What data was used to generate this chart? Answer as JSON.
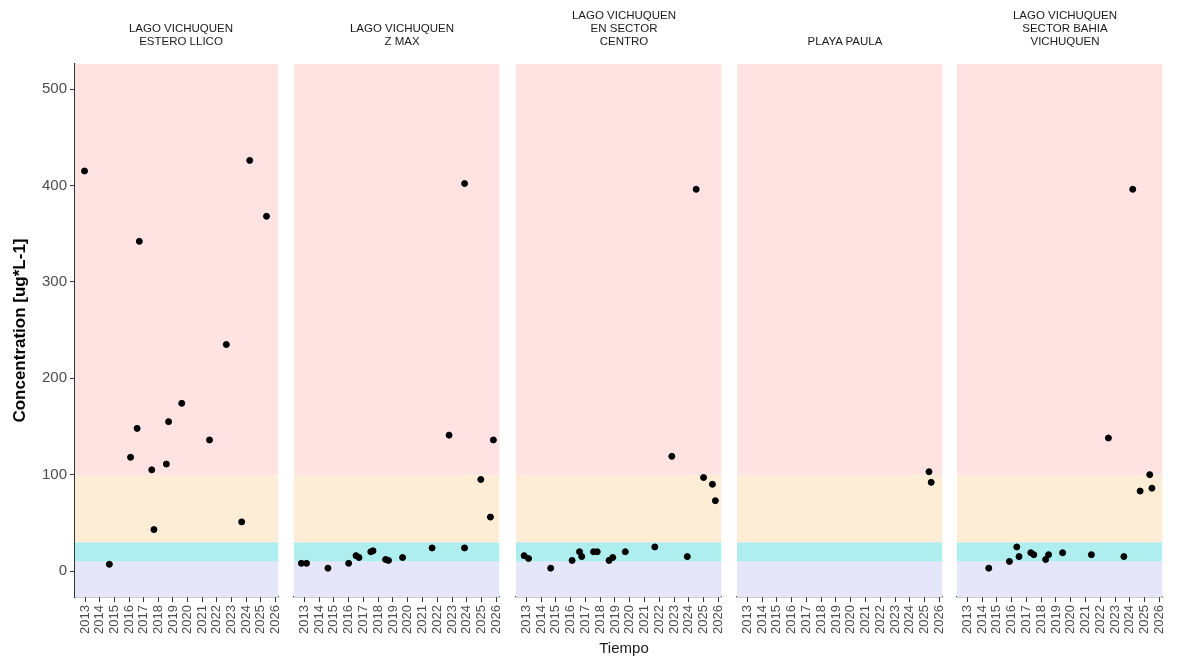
{
  "chart_data": [
    {
      "type": "scatter",
      "title": "LAGO VICHUQUEN\nESTERO LLICO",
      "ylabel": "Concentration [ug*L-1]",
      "color": "#000000",
      "marker": "circle",
      "x": [
        2012.95,
        2014.65,
        2016.1,
        2016.55,
        2016.7,
        2017.55,
        2017.7,
        2018.55,
        2018.7,
        2019.6,
        2021.5,
        2022.65,
        2023.7,
        2024.25,
        2025.4
      ],
      "values": [
        415,
        7,
        118,
        148,
        342,
        105,
        43,
        111,
        155,
        174,
        136,
        235,
        51,
        426,
        368
      ],
      "xlim": [
        2012.3,
        2026.2
      ],
      "xticks": [
        2013,
        2014,
        2015,
        2016,
        2017,
        2018,
        2019,
        2020,
        2021,
        2022,
        2023,
        2024,
        2025,
        2026
      ],
      "ylim": [
        -27,
        526
      ],
      "yticks": [
        0,
        100,
        200,
        300,
        400,
        500
      ],
      "bands": [
        {
          "axis": "y",
          "from": -27,
          "to": 10,
          "color": "#e6e6fa"
        },
        {
          "axis": "y",
          "from": 10,
          "to": 30,
          "color": "#aeeeee"
        },
        {
          "axis": "y",
          "from": 30,
          "to": 100,
          "color": "#fdecd6"
        },
        {
          "axis": "y",
          "from": 100,
          "to": 526,
          "color": "#ffe3e3"
        }
      ]
    },
    {
      "type": "scatter",
      "title": "LAGO VICHUQUEN\nZ MAX",
      "color": "#000000",
      "marker": "circle",
      "x": [
        2012.8,
        2013.15,
        2014.6,
        2016.0,
        2016.5,
        2016.7,
        2017.5,
        2017.65,
        2018.5,
        2018.7,
        2019.65,
        2021.65,
        2022.8,
        2023.85,
        2023.85,
        2024.95,
        2025.6,
        2025.8
      ],
      "values": [
        8,
        8,
        3,
        8,
        16,
        14,
        20,
        21,
        12,
        11,
        14,
        24,
        141,
        402,
        24,
        95,
        56,
        136
      ],
      "xlim": [
        2012.3,
        2026.2
      ],
      "xticks": [
        2013,
        2014,
        2015,
        2016,
        2017,
        2018,
        2019,
        2020,
        2021,
        2022,
        2023,
        2024,
        2025,
        2026
      ],
      "ylim": [
        -27,
        526
      ],
      "yticks": [
        0,
        100,
        200,
        300,
        400,
        500
      ],
      "tick_labels": "x",
      "bands": [
        {
          "axis": "y",
          "from": -27,
          "to": 10,
          "color": "#e6e6fa"
        },
        {
          "axis": "y",
          "from": 10,
          "to": 30,
          "color": "#aeeeee"
        },
        {
          "axis": "y",
          "from": 30,
          "to": 100,
          "color": "#fdecd6"
        },
        {
          "axis": "y",
          "from": 100,
          "to": 526,
          "color": "#ffe3e3"
        }
      ]
    },
    {
      "type": "scatter",
      "title": "LAGO VICHUQUEN\nEN SECTOR\nCENTRO",
      "xlabel": "Tiempo",
      "color": "#000000",
      "marker": "circle",
      "x": [
        2012.85,
        2013.15,
        2014.65,
        2016.1,
        2016.6,
        2016.75,
        2017.55,
        2017.8,
        2018.6,
        2018.85,
        2019.7,
        2021.7,
        2022.85,
        2023.9,
        2024.5,
        2025.0,
        2025.6,
        2025.8
      ],
      "values": [
        16,
        13,
        3,
        11,
        20,
        15,
        20,
        20,
        11,
        14,
        20,
        25,
        119,
        15,
        396,
        97,
        90,
        73
      ],
      "xlim": [
        2012.3,
        2026.2
      ],
      "xticks": [
        2013,
        2014,
        2015,
        2016,
        2017,
        2018,
        2019,
        2020,
        2021,
        2022,
        2023,
        2024,
        2025,
        2026
      ],
      "ylim": [
        -27,
        526
      ],
      "yticks": [
        0,
        100,
        200,
        300,
        400,
        500
      ],
      "tick_labels": "x",
      "bands": [
        {
          "axis": "y",
          "from": -27,
          "to": 10,
          "color": "#e6e6fa"
        },
        {
          "axis": "y",
          "from": 10,
          "to": 30,
          "color": "#aeeeee"
        },
        {
          "axis": "y",
          "from": 30,
          "to": 100,
          "color": "#fdecd6"
        },
        {
          "axis": "y",
          "from": 100,
          "to": 526,
          "color": "#ffe3e3"
        }
      ]
    },
    {
      "type": "scatter",
      "title": "PLAYA PAULA",
      "color": "#000000",
      "marker": "circle",
      "x": [
        2025.3,
        2025.45
      ],
      "values": [
        103,
        92
      ],
      "xlim": [
        2012.3,
        2026.2
      ],
      "xticks": [
        2013,
        2014,
        2015,
        2016,
        2017,
        2018,
        2019,
        2020,
        2021,
        2022,
        2023,
        2024,
        2025,
        2026
      ],
      "ylim": [
        -27,
        526
      ],
      "yticks": [
        0,
        100,
        200,
        300,
        400,
        500
      ],
      "tick_labels": "x",
      "bands": [
        {
          "axis": "y",
          "from": -27,
          "to": 10,
          "color": "#e6e6fa"
        },
        {
          "axis": "y",
          "from": 10,
          "to": 30,
          "color": "#aeeeee"
        },
        {
          "axis": "y",
          "from": 30,
          "to": 100,
          "color": "#fdecd6"
        },
        {
          "axis": "y",
          "from": 100,
          "to": 526,
          "color": "#ffe3e3"
        }
      ]
    },
    {
      "type": "scatter",
      "title": "LAGO VICHUQUEN\nSECTOR BAHIA\nVICHUQUEN",
      "color": "#000000",
      "marker": "circle",
      "x": [
        2014.45,
        2015.85,
        2016.35,
        2016.5,
        2017.3,
        2017.5,
        2018.3,
        2018.5,
        2019.45,
        2021.4,
        2022.55,
        2023.6,
        2024.2,
        2024.7,
        2025.35,
        2025.5
      ],
      "values": [
        3,
        10,
        25,
        15,
        19,
        17,
        12,
        17,
        19,
        17,
        138,
        15,
        396,
        83,
        100,
        86
      ],
      "xlim": [
        2012.3,
        2026.2
      ],
      "xticks": [
        2013,
        2014,
        2015,
        2016,
        2017,
        2018,
        2019,
        2020,
        2021,
        2022,
        2023,
        2024,
        2025,
        2026
      ],
      "ylim": [
        -27,
        526
      ],
      "yticks": [
        0,
        100,
        200,
        300,
        400,
        500
      ],
      "tick_labels": "x",
      "bands": [
        {
          "axis": "y",
          "from": -27,
          "to": 10,
          "color": "#e6e6fa"
        },
        {
          "axis": "y",
          "from": 10,
          "to": 30,
          "color": "#aeeeee"
        },
        {
          "axis": "y",
          "from": 30,
          "to": 100,
          "color": "#fdecd6"
        },
        {
          "axis": "y",
          "from": 100,
          "to": 526,
          "color": "#ffe3e3"
        }
      ]
    }
  ]
}
